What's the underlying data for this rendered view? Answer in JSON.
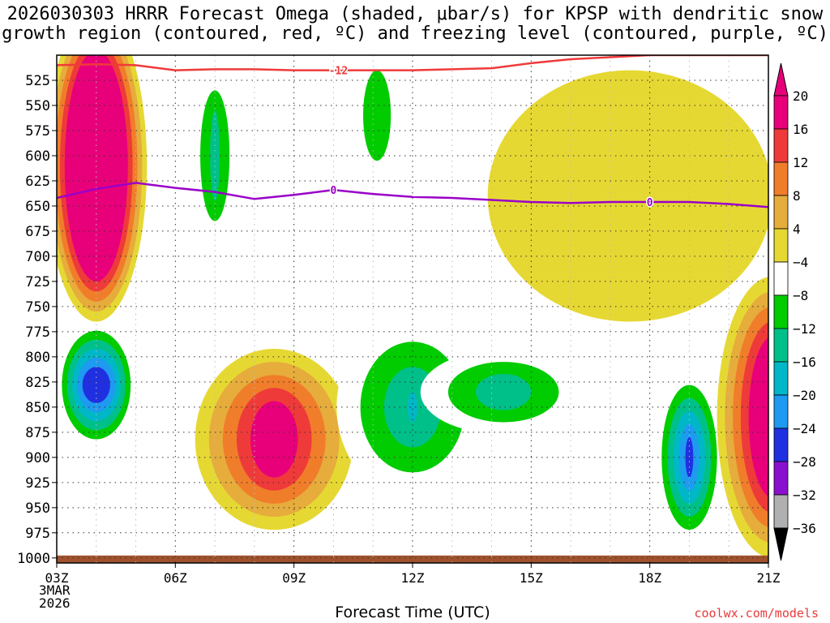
{
  "chart_data": {
    "type": "heatmap",
    "title_line1": "2026030303 HRRR Forecast Omega (shaded, μbar/s) for KPSP with dendritic snow",
    "title_line2": "growth region (contoured, red, ºC) and freezing level (contoured, purple, ºC)",
    "xlabel": "Forecast Time (UTC)",
    "x_ticks": [
      {
        "hour": 3,
        "label": "03Z"
      },
      {
        "hour": 6,
        "label": "06Z"
      },
      {
        "hour": 9,
        "label": "09Z"
      },
      {
        "hour": 12,
        "label": "12Z"
      },
      {
        "hour": 15,
        "label": "15Z"
      },
      {
        "hour": 18,
        "label": "18Z"
      },
      {
        "hour": 21,
        "label": "21Z"
      }
    ],
    "x_range_hours": [
      3,
      21
    ],
    "start_date_line1": "3MAR",
    "start_date_line2": "2026",
    "y_range_hpa": [
      1005,
      500
    ],
    "y_ticks": [
      525,
      550,
      575,
      600,
      625,
      650,
      675,
      700,
      725,
      750,
      775,
      800,
      825,
      850,
      875,
      900,
      925,
      950,
      975,
      1000
    ],
    "colorbar": {
      "labels": [
        "20",
        "16",
        "12",
        "8",
        "4",
        "−4",
        "−8",
        "−12",
        "−16",
        "−20",
        "−24",
        "−28",
        "−32",
        "−36"
      ],
      "colors": [
        "#e8007a",
        "#ef3a3a",
        "#f07d2a",
        "#e6ac3c",
        "#e6d833",
        "#ffffff",
        "#00cc00",
        "#00c08a",
        "#00b7c8",
        "#1e9af0",
        "#2030e0",
        "#8a10d0",
        "#b0b0b0",
        "#000000"
      ]
    },
    "freezing_level": {
      "label": "0",
      "color": "#9a00c8",
      "points": [
        [
          3,
          642
        ],
        [
          4,
          633
        ],
        [
          5,
          627
        ],
        [
          6,
          632
        ],
        [
          7,
          636
        ],
        [
          8,
          643
        ],
        [
          9,
          639
        ],
        [
          10,
          634
        ],
        [
          11,
          638
        ],
        [
          12,
          641
        ],
        [
          13,
          642
        ],
        [
          14,
          644
        ],
        [
          15,
          646
        ],
        [
          16,
          647
        ],
        [
          17,
          646
        ],
        [
          18,
          646
        ],
        [
          19,
          646
        ],
        [
          20,
          648
        ],
        [
          21,
          651
        ]
      ]
    },
    "dgz_contour": {
      "label": "-12",
      "color": "#ef3a3a",
      "points": [
        [
          3,
          510
        ],
        [
          4,
          509
        ],
        [
          5,
          510
        ],
        [
          6,
          515
        ],
        [
          7,
          514
        ],
        [
          8,
          514
        ],
        [
          9,
          515
        ],
        [
          10,
          515
        ],
        [
          11,
          515
        ],
        [
          12,
          515
        ],
        [
          13,
          514
        ],
        [
          14,
          513
        ],
        [
          15,
          508
        ],
        [
          16,
          504
        ],
        [
          17,
          502
        ],
        [
          18,
          500
        ],
        [
          19,
          500
        ],
        [
          20,
          500
        ],
        [
          21,
          500
        ]
      ]
    },
    "omega_features": [
      {
        "name": "upper-positive-max",
        "levels": [
          4,
          8,
          12,
          16,
          20
        ],
        "center": [
          4.0,
          610
        ],
        "core_rx": 0.8,
        "core_ry": 115,
        "step_rx": 0.12,
        "step_ry": 10
      },
      {
        "name": "low-negative-left",
        "levels": [
          -4,
          -8,
          -12,
          -16,
          -20,
          -24
        ],
        "center": [
          4.0,
          828
        ],
        "core_rx": 0.35,
        "core_ry": 18,
        "step_rx": 0.13,
        "step_ry": 9
      },
      {
        "name": "low-positive-mid",
        "levels": [
          4,
          8,
          12,
          16,
          20
        ],
        "center": [
          8.5,
          882
        ],
        "core_rx": 0.6,
        "core_ry": 38,
        "step_rx": 0.35,
        "step_ry": 13
      },
      {
        "name": "upper-negative-06z",
        "levels": [
          -4,
          -8,
          -12
        ],
        "center": [
          7.0,
          600
        ],
        "core_rx": 0.12,
        "core_ry": 45,
        "step_rx": 0.25,
        "step_ry": 20
      },
      {
        "name": "upper-negative-11z",
        "levels": [
          -4,
          -8
        ],
        "center": [
          11.1,
          560
        ],
        "core_rx": 0.35,
        "core_ry": 45,
        "step_rx": 0.35,
        "step_ry": 45
      },
      {
        "name": "upper-negative-13z",
        "levels": [
          -4
        ],
        "center": [
          13.0,
          560
        ],
        "core_rx": 0.25,
        "core_ry": 80
      },
      {
        "name": "low-negative-12z",
        "levels": [
          -4,
          -8,
          -12,
          -16
        ],
        "center": [
          12.0,
          850
        ],
        "core_rx": 0.12,
        "core_ry": 15,
        "step_rx": 0.6,
        "step_ry": 25
      },
      {
        "name": "low-negative-14z",
        "levels": [
          -4,
          -8,
          -12
        ],
        "center": [
          14.3,
          835
        ],
        "core_rx": 0.7,
        "core_ry": 18,
        "step_rx": 0.7,
        "step_ry": 12
      },
      {
        "name": "low-negative-19z",
        "levels": [
          -4,
          -8,
          -12,
          -16,
          -20,
          -24
        ],
        "center": [
          19.0,
          900
        ],
        "core_rx": 0.1,
        "core_ry": 20,
        "step_rx": 0.15,
        "step_ry": 13
      },
      {
        "name": "low-positive-right",
        "levels": [
          4,
          8,
          12,
          16,
          20
        ],
        "center": [
          21.1,
          860
        ],
        "core_rx": 0.6,
        "core_ry": 80,
        "step_rx": 0.2,
        "step_ry": 15
      },
      {
        "name": "upper-right-positive",
        "levels": [
          4
        ],
        "center": [
          17.5,
          640
        ],
        "core_rx": 3.6,
        "core_ry": 125
      }
    ],
    "terrain_level_hpa": 1000
  },
  "credit": "coolwx.com/models"
}
